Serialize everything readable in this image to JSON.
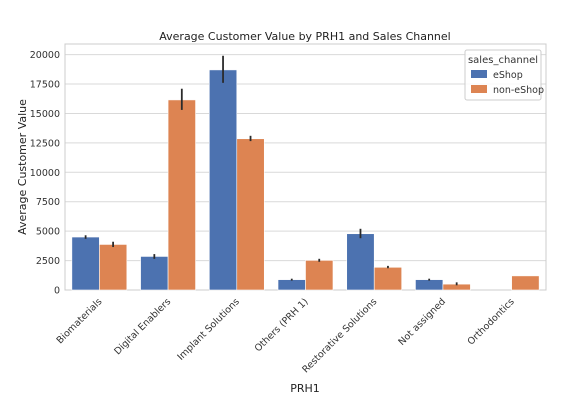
{
  "chart_data": {
    "type": "bar",
    "title": "Average Customer Value by PRH1 and Sales Channel",
    "xlabel": "PRH1",
    "ylabel": "Average Customer Value",
    "categories": [
      "Biomaterials",
      "Digital Enablers",
      "Implant Solutions",
      "Others (PRH 1)",
      "Restorative Solutions",
      "Not assigned",
      "Orthodontics"
    ],
    "series": [
      {
        "name": "eShop",
        "color": "#4c72b0",
        "values": [
          4500,
          2850,
          18700,
          880,
          4780,
          880,
          0
        ],
        "error": [
          [
            4350,
            4650
          ],
          [
            2650,
            3050
          ],
          [
            17600,
            19900
          ],
          [
            800,
            960
          ],
          [
            4400,
            5200
          ],
          [
            800,
            960
          ],
          null
        ]
      },
      {
        "name": "non-eShop",
        "color": "#dd8452",
        "values": [
          3870,
          16150,
          12850,
          2520,
          1930,
          500,
          1200
        ],
        "error": [
          [
            3650,
            4100
          ],
          [
            15300,
            17100
          ],
          [
            12650,
            13100
          ],
          [
            2400,
            2650
          ],
          [
            1850,
            2050
          ],
          [
            400,
            650
          ],
          null
        ]
      }
    ],
    "ylim": [
      0,
      20900
    ],
    "yticks": [
      "0",
      "2500",
      "5000",
      "7500",
      "10000",
      "12500",
      "15000",
      "17500",
      "20000"
    ],
    "grid": "horizontal",
    "legend": {
      "title": "sales_channel",
      "placement": "top-right"
    }
  }
}
